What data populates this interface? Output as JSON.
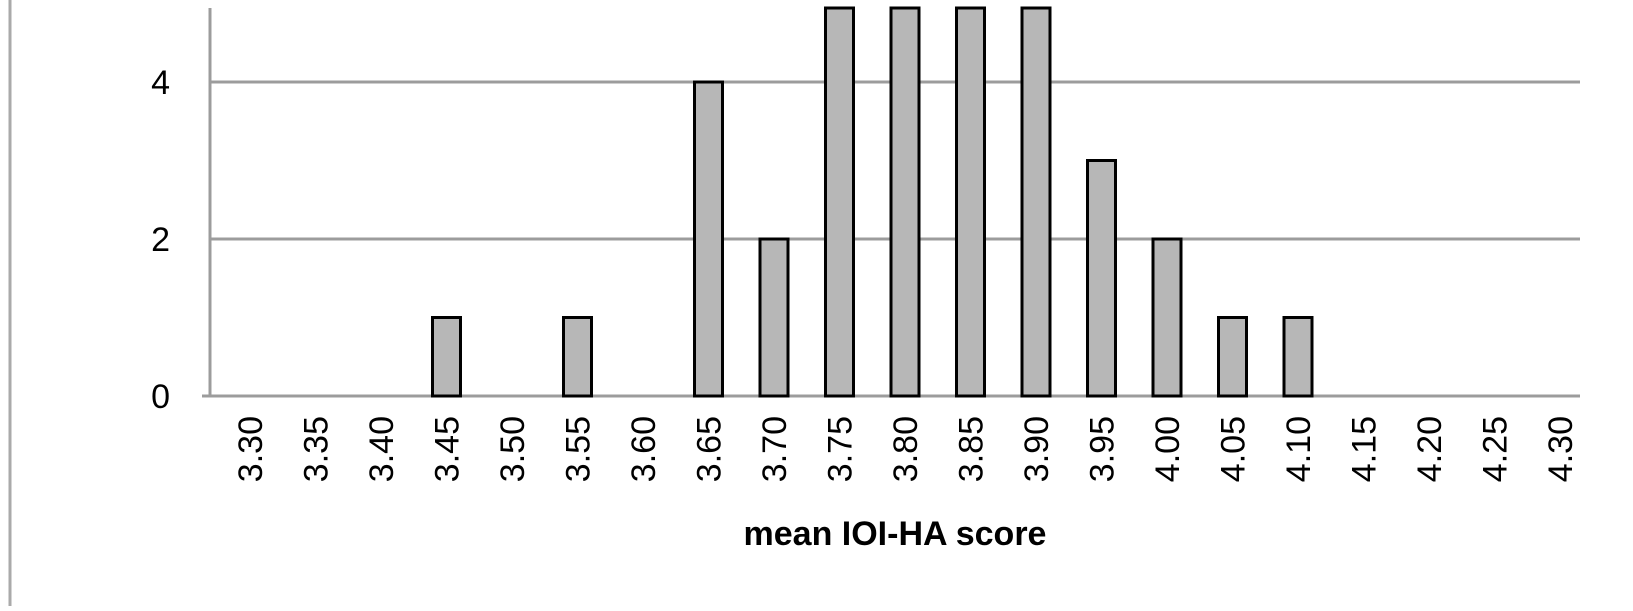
{
  "chart_data": {
    "type": "bar",
    "xlabel": "mean IOI-HA score",
    "ylabel": "",
    "categories": [
      "3.30",
      "3.35",
      "3.40",
      "3.45",
      "3.50",
      "3.55",
      "3.60",
      "3.65",
      "3.70",
      "3.75",
      "3.80",
      "3.85",
      "3.90",
      "3.95",
      "4.00",
      "4.05",
      "4.10",
      "4.15",
      "4.20",
      "4.25",
      "4.30"
    ],
    "values": [
      0,
      0,
      0,
      1,
      0,
      1,
      0,
      4,
      2,
      5,
      5,
      5,
      5,
      3,
      2,
      1,
      1,
      0,
      0,
      0,
      0
    ],
    "yticks": [
      0,
      2,
      4
    ],
    "ytick_labels": [
      "0",
      "2",
      "4"
    ],
    "ylim": [
      0,
      5
    ],
    "grid": true,
    "legend": "none",
    "colors": {
      "bar_fill": "#b7b7b7",
      "bar_stroke": "#000000",
      "gridline": "#9c9c9c",
      "axis": "#9c9c9c",
      "frame": "#aaaaaa"
    }
  }
}
